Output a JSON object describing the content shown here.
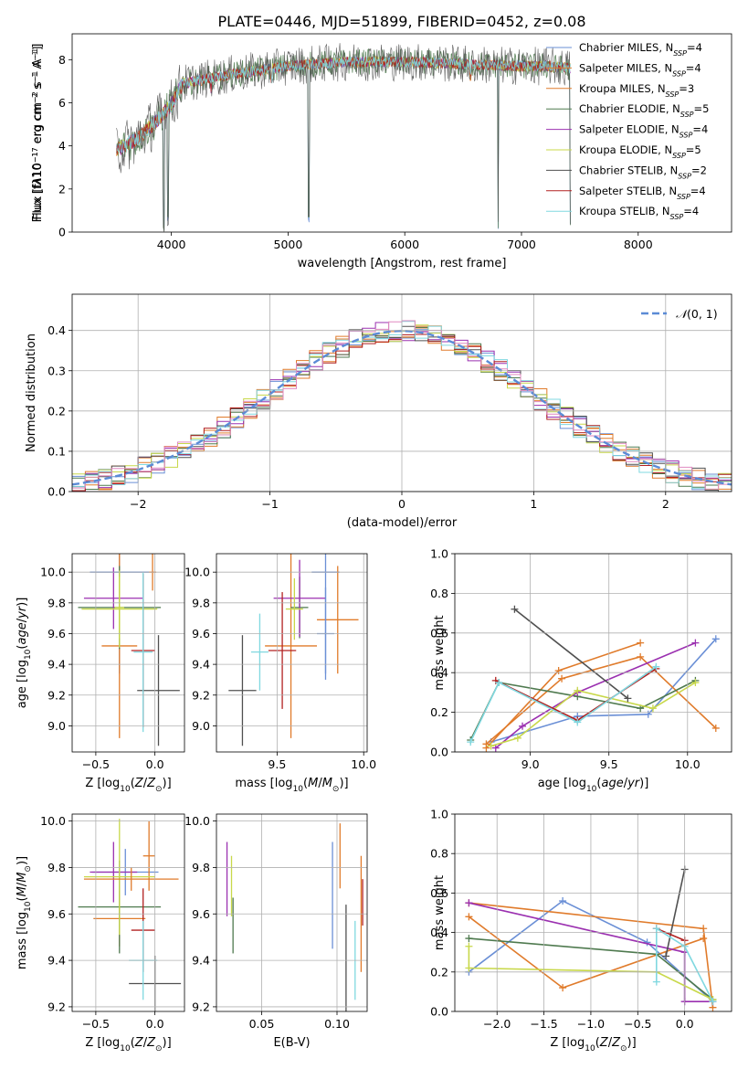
{
  "title": "PLATE=0446, MJD=51899, FIBERID=0452, z=0.08",
  "colors": {
    "Chabrier MILES": "#6a8fd6",
    "Salpeter MILES": "#e07b2b",
    "Kroupa MILES": "#e07b2b",
    "Chabrier ELODIE": "#4f7a4f",
    "Salpeter ELODIE": "#9b30b0",
    "Kroupa ELODIE": "#c8d84a",
    "Chabrier STELIB": "#505050",
    "Salpeter STELIB": "#b22020",
    "Kroupa STELIB": "#80d8e0",
    "Gaussian": "#5b8bd6"
  },
  "chart_data": [
    {
      "id": "spectrum",
      "type": "line",
      "title": "PLATE=0446, MJD=51899, FIBERID=0452, z=0.08",
      "xlabel": "wavelength [Angstrom, rest frame]",
      "ylabel_html": "Flux [f<tspan font-style='italic'>λ</tspan>10<tspan baseline-shift='super' font-size='8'>−17</tspan> erg cm<tspan baseline-shift='super' font-size='8'>−2</tspan> s<tspan baseline-shift='super' font-size='8'>−1</tspan> A<tspan baseline-shift='super' font-size='8'>−1</tspan>]",
      "xlim": [
        3150,
        8800
      ],
      "ylim": [
        0,
        9.2
      ],
      "xticks": [
        4000,
        5000,
        6000,
        7000,
        8000
      ],
      "yticks": [
        0,
        2,
        4,
        6,
        8
      ],
      "legend_position": "right",
      "legend": [
        {
          "name": "Chabrier MILES, N",
          "sub": "SSP",
          "tail": "=4",
          "color": "#6a8fd6"
        },
        {
          "name": "Salpeter MILES, N",
          "sub": "SSP",
          "tail": "=4",
          "color": "#e07b2b"
        },
        {
          "name": "Kroupa MILES, N",
          "sub": "SSP",
          "tail": "=3",
          "color": "#e07b2b"
        },
        {
          "name": "Chabrier ELODIE, N",
          "sub": "SSP",
          "tail": "=5",
          "color": "#4f7a4f"
        },
        {
          "name": "Salpeter ELODIE, N",
          "sub": "SSP",
          "tail": "=4",
          "color": "#9b30b0"
        },
        {
          "name": "Kroupa ELODIE, N",
          "sub": "SSP",
          "tail": "=5",
          "color": "#c8d84a"
        },
        {
          "name": "Chabrier STELIB, N",
          "sub": "SSP",
          "tail": "=2",
          "color": "#505050"
        },
        {
          "name": "Salpeter STELIB, N",
          "sub": "SSP",
          "tail": "=4",
          "color": "#b22020"
        },
        {
          "name": "Kroupa STELIB, N",
          "sub": "SSP",
          "tail": "=4",
          "color": "#80d8e0"
        }
      ],
      "continuum": [
        [
          3530,
          3.8
        ],
        [
          3700,
          4.3
        ],
        [
          3900,
          5.3
        ],
        [
          4000,
          5.9
        ],
        [
          4100,
          6.9
        ],
        [
          4300,
          7.1
        ],
        [
          4500,
          7.3
        ],
        [
          5000,
          7.7
        ],
        [
          5500,
          7.9
        ],
        [
          6000,
          7.9
        ],
        [
          6500,
          7.8
        ],
        [
          7000,
          7.7
        ],
        [
          7200,
          7.7
        ],
        [
          7420,
          7.6
        ]
      ],
      "absorption_lines": [
        [
          3934,
          0.0
        ],
        [
          3969,
          0.3
        ],
        [
          4340,
          6.4
        ],
        [
          4861,
          6.9
        ],
        [
          5175,
          0.3
        ],
        [
          6563,
          7.0
        ],
        [
          6800,
          0.0
        ],
        [
          7420,
          0.0
        ]
      ]
    },
    {
      "id": "residuals",
      "type": "histogram",
      "xlabel": "(data-model)/error",
      "ylabel": "Normed distribution",
      "xlim": [
        -2.5,
        2.5
      ],
      "ylim": [
        0,
        0.49
      ],
      "xticks": [
        -2,
        -1,
        0,
        1,
        2
      ],
      "yticks": [
        0,
        0.1,
        0.2,
        0.3,
        0.4
      ],
      "bin_width": 0.1,
      "legend": [
        {
          "name": "𝒩(0, 1)",
          "style": "dashed"
        }
      ],
      "legend_position": "top-right",
      "gaussian": {
        "mu": 0,
        "sigma": 1
      }
    },
    {
      "id": "age_vs_Z",
      "type": "errorbar",
      "xlabel_html": "Z [log<tspan baseline-shift='sub' font-size='9'>10</tspan>(<tspan font-style='italic'>Z</tspan>/<tspan font-style='italic'>Z</tspan><tspan baseline-shift='sub' font-size='9'>⊙</tspan>)]",
      "ylabel_html": "age  [log<tspan baseline-shift='sub' font-size='9'>10</tspan>(<tspan font-style='italic'>age</tspan>/<tspan font-style='italic'>yr</tspan>)]",
      "xlim": [
        -0.7,
        0.25
      ],
      "ylim": [
        8.83,
        10.12
      ],
      "xticks": [
        -0.5,
        0.0
      ],
      "yticks": [
        9.0,
        9.2,
        9.4,
        9.6,
        9.8,
        10.0
      ],
      "points": [
        {
          "series": "Chabrier MILES",
          "x": -0.3,
          "y": 10.0,
          "xerr": 0.25,
          "yerr": 0.66
        },
        {
          "series": "Salpeter MILES",
          "x": -0.3,
          "y": 9.52,
          "xerr": 0.15,
          "yerr": 0.6
        },
        {
          "series": "Kroupa MILES",
          "x": -0.02,
          "y": 10.0,
          "xerr": 0.03,
          "yerr": 0.12
        },
        {
          "series": "Chabrier ELODIE",
          "x": -0.3,
          "y": 9.77,
          "xerr": 0.35,
          "yerr": 0.27
        },
        {
          "series": "Salpeter ELODIE",
          "x": -0.35,
          "y": 9.83,
          "xerr": 0.25,
          "yerr": 0.2
        },
        {
          "series": "Kroupa ELODIE",
          "x": -0.3,
          "y": 9.76,
          "xerr": 0.32,
          "yerr": 0.25
        },
        {
          "series": "Chabrier STELIB",
          "x": 0.03,
          "y": 9.23,
          "xerr": 0.18,
          "yerr": 0.36
        },
        {
          "series": "Salpeter STELIB",
          "x": -0.1,
          "y": 9.49,
          "xerr": 0.1,
          "yerr": 0.5
        },
        {
          "series": "Kroupa STELIB",
          "x": -0.1,
          "y": 9.48,
          "xerr": 0.08,
          "yerr": 0.52
        },
        {
          "series": "Kroupa ELODIE",
          "x": -0.3,
          "y": 9.77,
          "xerr": 0.04,
          "yerr": 0.2
        }
      ]
    },
    {
      "id": "age_vs_mass",
      "type": "errorbar",
      "xlabel_html": "mass [log<tspan baseline-shift='sub' font-size='9'>10</tspan>(<tspan font-style='italic'>M</tspan>/<tspan font-style='italic'>M</tspan><tspan baseline-shift='sub' font-size='9'>⊙</tspan>)]",
      "xlim": [
        9.15,
        10.02
      ],
      "ylim": [
        8.83,
        10.12
      ],
      "xticks": [
        9.5,
        10.0
      ],
      "yticks": [
        9.0,
        9.2,
        9.4,
        9.6,
        9.8,
        10.0
      ],
      "points": [
        {
          "series": "Chabrier MILES",
          "x": 9.78,
          "y": 10.0,
          "xerr": 0.08,
          "yerr": 0.66
        },
        {
          "series": "Salpeter MILES",
          "x": 9.58,
          "y": 9.52,
          "xerr": 0.15,
          "yerr": 0.6
        },
        {
          "series": "Kroupa MILES",
          "x": 9.85,
          "y": 9.69,
          "xerr": 0.12,
          "yerr": 0.35
        },
        {
          "series": "Chabrier ELODIE",
          "x": 9.63,
          "y": 9.77,
          "xerr": 0.05,
          "yerr": 0.2
        },
        {
          "series": "Salpeter ELODIE",
          "x": 9.63,
          "y": 9.83,
          "xerr": 0.15,
          "yerr": 0.25
        },
        {
          "series": "Kroupa ELODIE",
          "x": 9.6,
          "y": 9.76,
          "xerr": 0.05,
          "yerr": 0.2
        },
        {
          "series": "Chabrier STELIB",
          "x": 9.3,
          "y": 9.23,
          "xerr": 0.08,
          "yerr": 0.36
        },
        {
          "series": "Salpeter STELIB",
          "x": 9.53,
          "y": 9.49,
          "xerr": 0.08,
          "yerr": 0.38
        },
        {
          "series": "Kroupa STELIB",
          "x": 9.4,
          "y": 9.48,
          "xerr": 0.05,
          "yerr": 0.25
        },
        {
          "series": "Chabrier MILES",
          "x": 9.78,
          "y": 9.6,
          "xerr": 0.05,
          "yerr": 0.3
        }
      ]
    },
    {
      "id": "weight_vs_age",
      "type": "line",
      "xlabel_html": "age  [log<tspan baseline-shift='sub' font-size='9'>10</tspan>(<tspan font-style='italic'>age</tspan>/<tspan font-style='italic'>yr</tspan>)]",
      "ylabel": "mass weight",
      "xlim": [
        8.52,
        10.28
      ],
      "ylim": [
        0,
        1
      ],
      "xticks": [
        9.0,
        9.5,
        10.0
      ],
      "yticks": [
        0.0,
        0.2,
        0.4,
        0.6,
        0.8,
        1.0
      ],
      "series": [
        {
          "name": "Chabrier MILES",
          "points": [
            [
              8.75,
              0.05
            ],
            [
              9.3,
              0.18
            ],
            [
              9.75,
              0.19
            ],
            [
              10.18,
              0.57
            ]
          ]
        },
        {
          "name": "Salpeter MILES",
          "points": [
            [
              8.72,
              0.02
            ],
            [
              9.18,
              0.41
            ],
            [
              9.7,
              0.55
            ]
          ]
        },
        {
          "name": "Kroupa MILES",
          "points": [
            [
              8.72,
              0.04
            ],
            [
              9.2,
              0.37
            ],
            [
              9.7,
              0.48
            ],
            [
              10.18,
              0.12
            ]
          ]
        },
        {
          "name": "Chabrier ELODIE",
          "points": [
            [
              8.62,
              0.06
            ],
            [
              8.8,
              0.35
            ],
            [
              9.3,
              0.28
            ],
            [
              9.7,
              0.22
            ],
            [
              10.05,
              0.36
            ]
          ]
        },
        {
          "name": "Salpeter ELODIE",
          "points": [
            [
              8.78,
              0.02
            ],
            [
              8.95,
              0.13
            ],
            [
              9.3,
              0.3
            ],
            [
              10.05,
              0.55
            ]
          ]
        },
        {
          "name": "Kroupa ELODIE",
          "points": [
            [
              8.75,
              0.03
            ],
            [
              8.92,
              0.07
            ],
            [
              9.3,
              0.31
            ],
            [
              9.78,
              0.22
            ],
            [
              10.05,
              0.35
            ]
          ]
        },
        {
          "name": "Chabrier STELIB",
          "points": [
            [
              8.9,
              0.72
            ],
            [
              9.62,
              0.27
            ]
          ]
        },
        {
          "name": "Salpeter STELIB",
          "points": [
            [
              8.78,
              0.36
            ],
            [
              9.3,
              0.16
            ],
            [
              9.8,
              0.42
            ]
          ]
        },
        {
          "name": "Kroupa STELIB",
          "points": [
            [
              8.62,
              0.05
            ],
            [
              8.8,
              0.35
            ],
            [
              9.3,
              0.15
            ],
            [
              9.8,
              0.43
            ]
          ]
        }
      ]
    },
    {
      "id": "mass_vs_Z",
      "type": "errorbar",
      "xlabel_html": "Z [log<tspan baseline-shift='sub' font-size='9'>10</tspan>(<tspan font-style='italic'>Z</tspan>/<tspan font-style='italic'>Z</tspan><tspan baseline-shift='sub' font-size='9'>⊙</tspan>)]",
      "ylabel_html": "mass [log<tspan baseline-shift='sub' font-size='9'>10</tspan>(<tspan font-style='italic'>M</tspan>/<tspan font-style='italic'>M</tspan><tspan baseline-shift='sub' font-size='9'>⊙</tspan>)]",
      "xlim": [
        -0.7,
        0.25
      ],
      "ylim": [
        9.18,
        10.03
      ],
      "xticks": [
        -0.5,
        0.0
      ],
      "yticks": [
        9.2,
        9.4,
        9.6,
        9.8,
        10.0
      ],
      "points": [
        {
          "series": "Chabrier MILES",
          "x": -0.25,
          "y": 9.78,
          "xerr": 0.28,
          "yerr": 0.1
        },
        {
          "series": "Salpeter MILES",
          "x": -0.3,
          "y": 9.58,
          "xerr": 0.22,
          "yerr": 0.12
        },
        {
          "series": "Kroupa MILES",
          "x": -0.05,
          "y": 9.85,
          "xerr": 0.05,
          "yerr": 0.15
        },
        {
          "series": "Chabrier ELODIE",
          "x": -0.3,
          "y": 9.63,
          "xerr": 0.35,
          "yerr": 0.2
        },
        {
          "series": "Salpeter ELODIE",
          "x": -0.35,
          "y": 9.78,
          "xerr": 0.2,
          "yerr": 0.13
        },
        {
          "series": "Kroupa ELODIE",
          "x": -0.3,
          "y": 9.76,
          "xerr": 0.3,
          "yerr": 0.25
        },
        {
          "series": "Chabrier STELIB",
          "x": 0.0,
          "y": 9.3,
          "xerr": 0.22,
          "yerr": 0.12
        },
        {
          "series": "Salpeter STELIB",
          "x": -0.1,
          "y": 9.53,
          "xerr": 0.1,
          "yerr": 0.18
        },
        {
          "series": "Kroupa STELIB",
          "x": -0.1,
          "y": 9.4,
          "xerr": 0.12,
          "yerr": 0.17
        },
        {
          "series": "Kroupa MILES",
          "x": -0.2,
          "y": 9.75,
          "xerr": 0.4,
          "yerr": 0.05
        }
      ]
    },
    {
      "id": "mass_vs_ebv",
      "type": "errorbar",
      "xlabel": "E(B-V)",
      "xlim": [
        0.02,
        0.12
      ],
      "ylim": [
        9.18,
        10.03
      ],
      "xticks": [
        0.05,
        0.1
      ],
      "tick_labels": [
        "0.05",
        "0.10"
      ],
      "yticks": [
        9.2,
        9.4,
        9.6,
        9.8,
        10.0
      ],
      "points": [
        {
          "series": "Salpeter ELODIE",
          "x": 0.027,
          "y": 9.75,
          "xerr": 0,
          "yerr": 0.16
        },
        {
          "series": "Kroupa ELODIE",
          "x": 0.03,
          "y": 9.72,
          "xerr": 0,
          "yerr": 0.13
        },
        {
          "series": "Chabrier ELODIE",
          "x": 0.031,
          "y": 9.55,
          "xerr": 0,
          "yerr": 0.12
        },
        {
          "series": "Chabrier MILES",
          "x": 0.097,
          "y": 9.68,
          "xerr": 0,
          "yerr": 0.23
        },
        {
          "series": "Kroupa MILES",
          "x": 0.102,
          "y": 9.85,
          "xerr": 0,
          "yerr": 0.14
        },
        {
          "series": "Chabrier STELIB",
          "x": 0.106,
          "y": 9.38,
          "xerr": 0,
          "yerr": 0.26
        },
        {
          "series": "Kroupa STELIB",
          "x": 0.112,
          "y": 9.4,
          "xerr": 0,
          "yerr": 0.17
        },
        {
          "series": "Salpeter MILES",
          "x": 0.116,
          "y": 9.6,
          "xerr": 0,
          "yerr": 0.25
        },
        {
          "series": "Salpeter STELIB",
          "x": 0.117,
          "y": 9.65,
          "xerr": 0,
          "yerr": 0.1
        }
      ]
    },
    {
      "id": "weight_vs_Z",
      "type": "line",
      "xlabel_html": "Z [log<tspan baseline-shift='sub' font-size='9'>10</tspan>(<tspan font-style='italic'>Z</tspan>/<tspan font-style='italic'>Z</tspan><tspan baseline-shift='sub' font-size='9'>⊙</tspan>)]",
      "ylabel": "mass weight",
      "xlim": [
        -2.45,
        0.5
      ],
      "ylim": [
        0,
        1
      ],
      "xticks": [
        -2.0,
        -1.5,
        -1.0,
        -0.5,
        0.0
      ],
      "yticks": [
        0.0,
        0.2,
        0.4,
        0.6,
        0.8,
        1.0
      ],
      "series": [
        {
          "name": "Chabrier MILES",
          "points": [
            [
              -2.3,
              0.2
            ],
            [
              -1.3,
              0.56
            ],
            [
              -0.4,
              0.35
            ],
            [
              0.3,
              0.05
            ]
          ]
        },
        {
          "name": "Salpeter MILES",
          "points": [
            [
              -2.3,
              0.55
            ],
            [
              0.2,
              0.42
            ],
            [
              0.3,
              0.02
            ]
          ]
        },
        {
          "name": "Kroupa MILES",
          "points": [
            [
              -2.3,
              0.48
            ],
            [
              -1.3,
              0.12
            ],
            [
              0.2,
              0.37
            ]
          ]
        },
        {
          "name": "Chabrier ELODIE",
          "points": [
            [
              -2.3,
              0.37
            ],
            [
              -0.3,
              0.29
            ],
            [
              0.3,
              0.06
            ]
          ]
        },
        {
          "name": "Salpeter ELODIE",
          "points": [
            [
              -2.3,
              0.55
            ],
            [
              0.0,
              0.3
            ],
            [
              0.0,
              0.05
            ],
            [
              0.3,
              0.05
            ]
          ]
        },
        {
          "name": "Kroupa ELODIE",
          "points": [
            [
              -2.3,
              0.33
            ],
            [
              -2.3,
              0.22
            ],
            [
              -0.3,
              0.2
            ],
            [
              0.3,
              0.06
            ]
          ]
        },
        {
          "name": "Chabrier STELIB",
          "points": [
            [
              -0.2,
              0.28
            ],
            [
              0.0,
              0.72
            ]
          ]
        },
        {
          "name": "Salpeter STELIB",
          "points": [
            [
              -0.3,
              0.42
            ],
            [
              0.0,
              0.36
            ]
          ]
        },
        {
          "name": "Kroupa STELIB",
          "points": [
            [
              -0.3,
              0.15
            ],
            [
              -0.3,
              0.42
            ],
            [
              0.0,
              0.33
            ],
            [
              0.3,
              0.05
            ]
          ]
        }
      ]
    }
  ]
}
